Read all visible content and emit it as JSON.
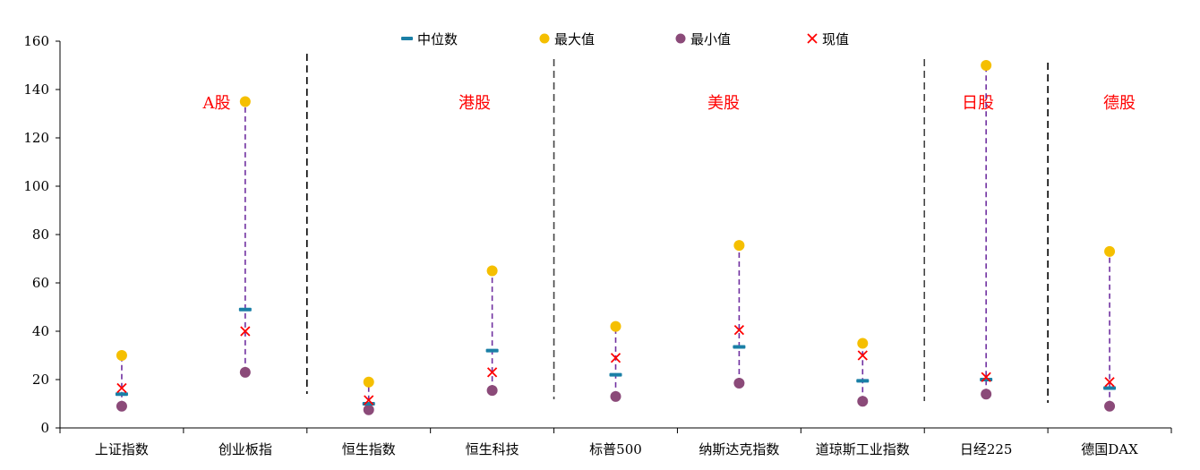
{
  "chart_data": {
    "type": "scatter",
    "ylim": [
      0,
      160
    ],
    "yticks": [
      0,
      20,
      40,
      60,
      80,
      100,
      120,
      140,
      160
    ],
    "categories": [
      "上证指数",
      "创业板指",
      "恒生指数",
      "恒生科技",
      "标普500",
      "纳斯达克指数",
      "道琼斯工业指数",
      "日经225",
      "德国DAX"
    ],
    "series": [
      {
        "name": "中位数",
        "marker": "dash",
        "color": "#1a7fa6",
        "values": [
          14,
          49,
          10,
          32,
          22,
          33.5,
          19.5,
          20,
          16.5
        ]
      },
      {
        "name": "最大值",
        "marker": "circle",
        "color": "#f5bf00",
        "values": [
          30,
          135,
          19,
          65,
          42,
          75.5,
          35,
          150,
          73
        ]
      },
      {
        "name": "最小值",
        "marker": "circle",
        "color": "#8b4a79",
        "values": [
          9,
          23,
          7.5,
          15.5,
          13,
          18.5,
          11,
          14,
          9
        ]
      },
      {
        "name": "现值",
        "marker": "cross",
        "color": "#ff0000",
        "values": [
          16.5,
          40,
          11.5,
          23,
          29,
          40.5,
          30,
          21,
          19
        ]
      }
    ],
    "range_line_color": "#7030a0",
    "regions": [
      {
        "label": "A股"
      },
      {
        "label": "港股"
      },
      {
        "label": "美股"
      },
      {
        "label": "日股"
      },
      {
        "label": "德股"
      }
    ],
    "legend_position": "top-center",
    "grid": false
  }
}
